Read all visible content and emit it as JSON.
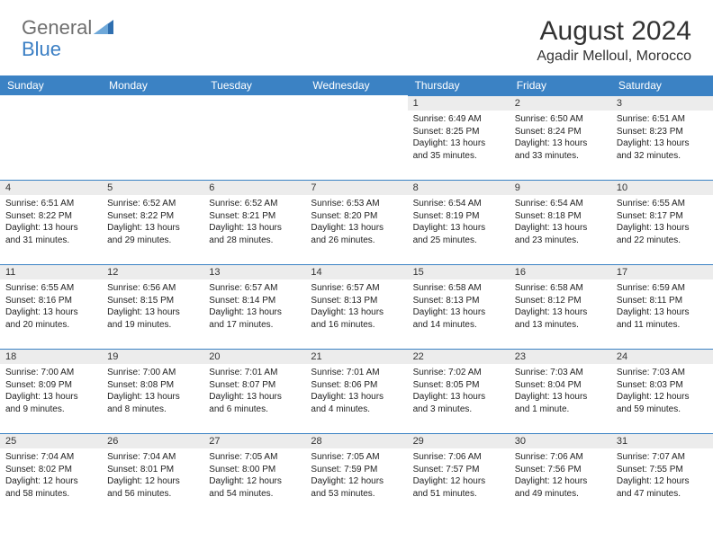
{
  "brand": {
    "part1": "General",
    "part2": "Blue"
  },
  "title": "August 2024",
  "location": "Agadir Melloul, Morocco",
  "colors": {
    "header_bg": "#3b82c4",
    "header_text": "#ffffff",
    "daynum_bg": "#ececec",
    "border": "#3b82c4",
    "logo_gray": "#6f6f6f",
    "logo_blue": "#3b7fc4"
  },
  "weekdays": [
    "Sunday",
    "Monday",
    "Tuesday",
    "Wednesday",
    "Thursday",
    "Friday",
    "Saturday"
  ],
  "weeks": [
    [
      {
        "n": "",
        "lines": []
      },
      {
        "n": "",
        "lines": []
      },
      {
        "n": "",
        "lines": []
      },
      {
        "n": "",
        "lines": []
      },
      {
        "n": "1",
        "lines": [
          "Sunrise: 6:49 AM",
          "Sunset: 8:25 PM",
          "Daylight: 13 hours",
          "and 35 minutes."
        ]
      },
      {
        "n": "2",
        "lines": [
          "Sunrise: 6:50 AM",
          "Sunset: 8:24 PM",
          "Daylight: 13 hours",
          "and 33 minutes."
        ]
      },
      {
        "n": "3",
        "lines": [
          "Sunrise: 6:51 AM",
          "Sunset: 8:23 PM",
          "Daylight: 13 hours",
          "and 32 minutes."
        ]
      }
    ],
    [
      {
        "n": "4",
        "lines": [
          "Sunrise: 6:51 AM",
          "Sunset: 8:22 PM",
          "Daylight: 13 hours",
          "and 31 minutes."
        ]
      },
      {
        "n": "5",
        "lines": [
          "Sunrise: 6:52 AM",
          "Sunset: 8:22 PM",
          "Daylight: 13 hours",
          "and 29 minutes."
        ]
      },
      {
        "n": "6",
        "lines": [
          "Sunrise: 6:52 AM",
          "Sunset: 8:21 PM",
          "Daylight: 13 hours",
          "and 28 minutes."
        ]
      },
      {
        "n": "7",
        "lines": [
          "Sunrise: 6:53 AM",
          "Sunset: 8:20 PM",
          "Daylight: 13 hours",
          "and 26 minutes."
        ]
      },
      {
        "n": "8",
        "lines": [
          "Sunrise: 6:54 AM",
          "Sunset: 8:19 PM",
          "Daylight: 13 hours",
          "and 25 minutes."
        ]
      },
      {
        "n": "9",
        "lines": [
          "Sunrise: 6:54 AM",
          "Sunset: 8:18 PM",
          "Daylight: 13 hours",
          "and 23 minutes."
        ]
      },
      {
        "n": "10",
        "lines": [
          "Sunrise: 6:55 AM",
          "Sunset: 8:17 PM",
          "Daylight: 13 hours",
          "and 22 minutes."
        ]
      }
    ],
    [
      {
        "n": "11",
        "lines": [
          "Sunrise: 6:55 AM",
          "Sunset: 8:16 PM",
          "Daylight: 13 hours",
          "and 20 minutes."
        ]
      },
      {
        "n": "12",
        "lines": [
          "Sunrise: 6:56 AM",
          "Sunset: 8:15 PM",
          "Daylight: 13 hours",
          "and 19 minutes."
        ]
      },
      {
        "n": "13",
        "lines": [
          "Sunrise: 6:57 AM",
          "Sunset: 8:14 PM",
          "Daylight: 13 hours",
          "and 17 minutes."
        ]
      },
      {
        "n": "14",
        "lines": [
          "Sunrise: 6:57 AM",
          "Sunset: 8:13 PM",
          "Daylight: 13 hours",
          "and 16 minutes."
        ]
      },
      {
        "n": "15",
        "lines": [
          "Sunrise: 6:58 AM",
          "Sunset: 8:13 PM",
          "Daylight: 13 hours",
          "and 14 minutes."
        ]
      },
      {
        "n": "16",
        "lines": [
          "Sunrise: 6:58 AM",
          "Sunset: 8:12 PM",
          "Daylight: 13 hours",
          "and 13 minutes."
        ]
      },
      {
        "n": "17",
        "lines": [
          "Sunrise: 6:59 AM",
          "Sunset: 8:11 PM",
          "Daylight: 13 hours",
          "and 11 minutes."
        ]
      }
    ],
    [
      {
        "n": "18",
        "lines": [
          "Sunrise: 7:00 AM",
          "Sunset: 8:09 PM",
          "Daylight: 13 hours",
          "and 9 minutes."
        ]
      },
      {
        "n": "19",
        "lines": [
          "Sunrise: 7:00 AM",
          "Sunset: 8:08 PM",
          "Daylight: 13 hours",
          "and 8 minutes."
        ]
      },
      {
        "n": "20",
        "lines": [
          "Sunrise: 7:01 AM",
          "Sunset: 8:07 PM",
          "Daylight: 13 hours",
          "and 6 minutes."
        ]
      },
      {
        "n": "21",
        "lines": [
          "Sunrise: 7:01 AM",
          "Sunset: 8:06 PM",
          "Daylight: 13 hours",
          "and 4 minutes."
        ]
      },
      {
        "n": "22",
        "lines": [
          "Sunrise: 7:02 AM",
          "Sunset: 8:05 PM",
          "Daylight: 13 hours",
          "and 3 minutes."
        ]
      },
      {
        "n": "23",
        "lines": [
          "Sunrise: 7:03 AM",
          "Sunset: 8:04 PM",
          "Daylight: 13 hours",
          "and 1 minute."
        ]
      },
      {
        "n": "24",
        "lines": [
          "Sunrise: 7:03 AM",
          "Sunset: 8:03 PM",
          "Daylight: 12 hours",
          "and 59 minutes."
        ]
      }
    ],
    [
      {
        "n": "25",
        "lines": [
          "Sunrise: 7:04 AM",
          "Sunset: 8:02 PM",
          "Daylight: 12 hours",
          "and 58 minutes."
        ]
      },
      {
        "n": "26",
        "lines": [
          "Sunrise: 7:04 AM",
          "Sunset: 8:01 PM",
          "Daylight: 12 hours",
          "and 56 minutes."
        ]
      },
      {
        "n": "27",
        "lines": [
          "Sunrise: 7:05 AM",
          "Sunset: 8:00 PM",
          "Daylight: 12 hours",
          "and 54 minutes."
        ]
      },
      {
        "n": "28",
        "lines": [
          "Sunrise: 7:05 AM",
          "Sunset: 7:59 PM",
          "Daylight: 12 hours",
          "and 53 minutes."
        ]
      },
      {
        "n": "29",
        "lines": [
          "Sunrise: 7:06 AM",
          "Sunset: 7:57 PM",
          "Daylight: 12 hours",
          "and 51 minutes."
        ]
      },
      {
        "n": "30",
        "lines": [
          "Sunrise: 7:06 AM",
          "Sunset: 7:56 PM",
          "Daylight: 12 hours",
          "and 49 minutes."
        ]
      },
      {
        "n": "31",
        "lines": [
          "Sunrise: 7:07 AM",
          "Sunset: 7:55 PM",
          "Daylight: 12 hours",
          "and 47 minutes."
        ]
      }
    ]
  ]
}
